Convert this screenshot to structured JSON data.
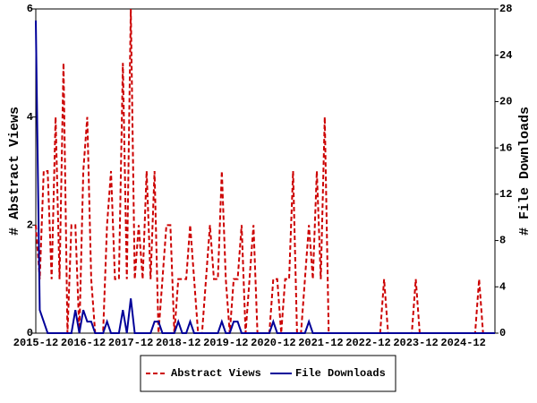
{
  "chart_data": {
    "type": "line",
    "categories": [
      "2015-12",
      null,
      null,
      null,
      null,
      null,
      null,
      null,
      null,
      null,
      null,
      null,
      "2016-12",
      null,
      null,
      null,
      null,
      null,
      null,
      null,
      null,
      null,
      null,
      null,
      "2017-12",
      null,
      null,
      null,
      null,
      null,
      null,
      null,
      null,
      null,
      null,
      null,
      "2018-12",
      null,
      null,
      null,
      null,
      null,
      null,
      null,
      null,
      null,
      null,
      null,
      "2019-12",
      null,
      null,
      null,
      null,
      null,
      null,
      null,
      null,
      null,
      null,
      null,
      "2020-12",
      null,
      null,
      null,
      null,
      null,
      null,
      null,
      null,
      null,
      null,
      null,
      "2021-12",
      null,
      null,
      null,
      null,
      null,
      null,
      null,
      null,
      null,
      null,
      null,
      "2022-12",
      null,
      null,
      null,
      null,
      null,
      null,
      null,
      null,
      null,
      null,
      null,
      "2023-12",
      null,
      null,
      null,
      null,
      null,
      null,
      null,
      null,
      null,
      null,
      null,
      "2024-12",
      null,
      null,
      null,
      null,
      null,
      null,
      null,
      null
    ],
    "y_label": "# Abstract Views",
    "y2_label": "# File Downloads",
    "ylim": [
      0,
      6
    ],
    "yticks": [
      0,
      2,
      4,
      6
    ],
    "y2lim": [
      0,
      28
    ],
    "y2ticks": [
      0,
      4,
      8,
      12,
      16,
      20,
      24,
      28
    ],
    "series": [
      {
        "name": "Abstract Views",
        "color": "#cc0000",
        "values": [
          2,
          1,
          3,
          3,
          1,
          4,
          1,
          5,
          0,
          2,
          2,
          0,
          3,
          4,
          1,
          0,
          0,
          0,
          2,
          3,
          1,
          1,
          5,
          1,
          6,
          1,
          2,
          1,
          3,
          1,
          3,
          0,
          1,
          2,
          2,
          0,
          1,
          1,
          1,
          2,
          1,
          0,
          0,
          1,
          2,
          1,
          1,
          3,
          1,
          0,
          1,
          1,
          2,
          0,
          1,
          2,
          0,
          0,
          0,
          0,
          1,
          1,
          0,
          1,
          1,
          3,
          0,
          0,
          1,
          2,
          1,
          3,
          1,
          4,
          0,
          0,
          0,
          0,
          0,
          0,
          0,
          0,
          0,
          0,
          0,
          0,
          0,
          0,
          1,
          0,
          0,
          0,
          0,
          0,
          0,
          0,
          1,
          0,
          0,
          0,
          0,
          0,
          0,
          0,
          0,
          0,
          0,
          0,
          0,
          0,
          0,
          0,
          1,
          0,
          0,
          0,
          0
        ]
      },
      {
        "name": "File Downloads",
        "color": "#000099",
        "axis": "y2",
        "values": [
          27,
          2,
          1,
          0,
          0,
          0,
          0,
          0,
          0,
          0,
          2,
          0,
          2,
          1,
          1,
          0,
          0,
          0,
          1,
          0,
          0,
          0,
          2,
          0,
          3,
          0,
          0,
          0,
          0,
          0,
          1,
          1,
          0,
          0,
          0,
          0,
          1,
          0,
          0,
          1,
          0,
          0,
          0,
          0,
          0,
          0,
          0,
          1,
          0,
          0,
          1,
          1,
          0,
          0,
          0,
          0,
          0,
          0,
          0,
          0,
          1,
          0,
          0,
          0,
          0,
          0,
          0,
          0,
          0,
          1,
          0,
          0,
          0,
          0,
          0,
          0,
          0,
          0,
          0,
          0,
          0,
          0,
          0,
          0,
          0,
          0,
          0,
          0,
          0,
          0,
          0,
          0,
          0,
          0,
          0,
          0,
          0,
          0,
          0,
          0,
          0,
          0,
          0,
          0,
          0,
          0,
          0,
          0,
          0,
          0,
          0,
          0,
          0,
          0,
          0,
          0,
          0
        ]
      }
    ]
  }
}
